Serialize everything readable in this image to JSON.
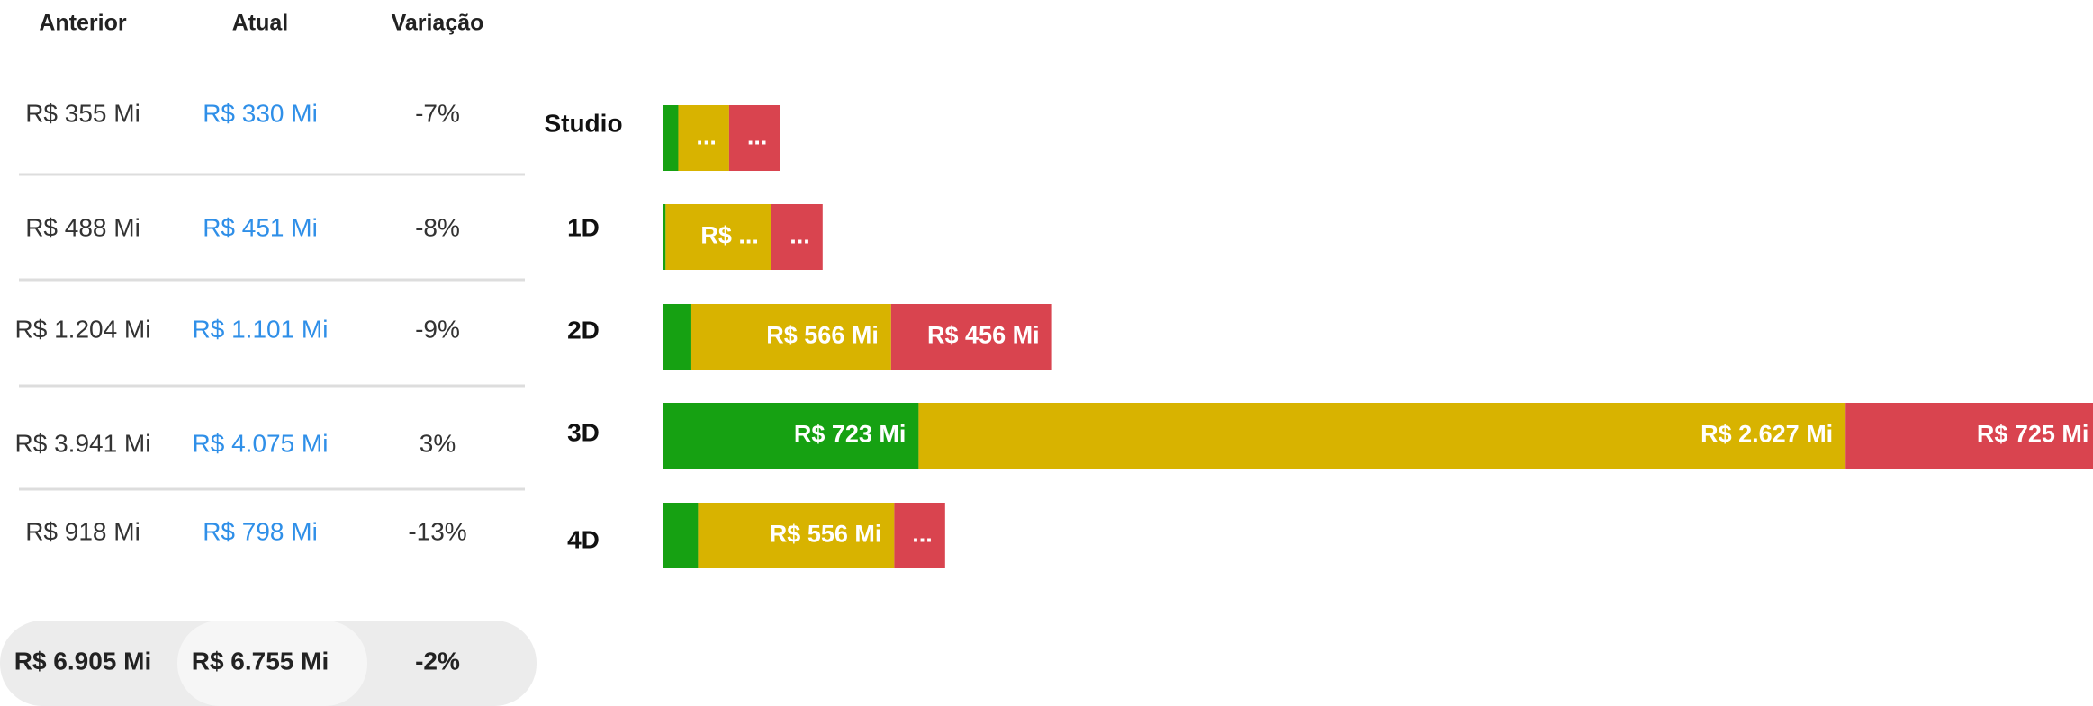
{
  "table": {
    "headers": [
      "Anterior",
      "Atual",
      "Variação"
    ],
    "rows": [
      [
        "R$ 355 Mi",
        "R$ 330 Mi",
        "-7%"
      ],
      [
        "R$ 488 Mi",
        "R$ 451 Mi",
        "-8%"
      ],
      [
        "R$ 1.204 Mi",
        "R$ 1.101 Mi",
        "-9%"
      ],
      [
        "R$ 3.941 Mi",
        "R$ 4.075 Mi",
        "3%"
      ],
      [
        "R$ 918 Mi",
        "R$ 798 Mi",
        "-13%"
      ]
    ],
    "total": [
      "R$ 6.905 Mi",
      "R$ 6.755 Mi",
      "-2%"
    ]
  },
  "chart_data": {
    "type": "stacked-bar-horizontal",
    "categories": [
      "Studio",
      "1D",
      "2D",
      "3D",
      "4D"
    ],
    "series": [
      {
        "color": "#16a112",
        "values": [
          42,
          6,
          79,
          723,
          98
        ],
        "value_labels": [
          null,
          null,
          null,
          "R$ 723 Mi",
          null
        ]
      },
      {
        "color": "#d8b300",
        "values": [
          144,
          300,
          566,
          2627,
          556
        ],
        "value_labels": [
          "...",
          "R$ ...",
          "R$ 566 Mi",
          "R$ 2.627 Mi",
          "R$ 556 Mi"
        ]
      },
      {
        "color": "#d9444f",
        "values": [
          144,
          145,
          456,
          725,
          144
        ],
        "value_labels": [
          "...",
          "...",
          "R$ 456 Mi",
          "R$ 725 Mi",
          "..."
        ]
      }
    ]
  }
}
